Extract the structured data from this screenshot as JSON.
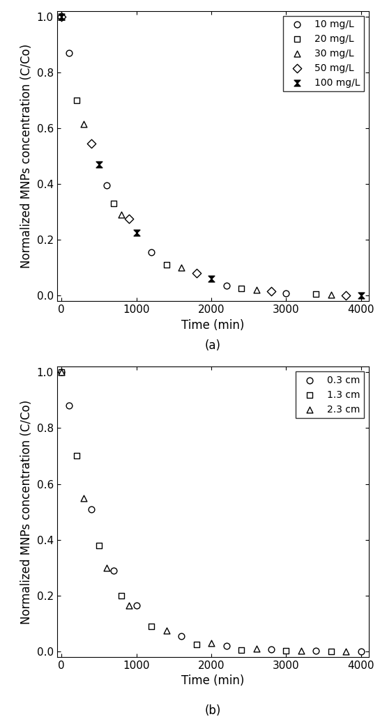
{
  "chart_data": [
    {
      "type": "scatter",
      "title": "(a)",
      "x_label": "Time (min)",
      "y_label": "Normalized MNPs concentration (C/Co)",
      "xlim": [
        -60,
        4100
      ],
      "ylim": [
        -0.02,
        1.02
      ],
      "xticks": [
        0,
        1000,
        2000,
        3000,
        4000
      ],
      "yticks": [
        {
          "value": 0.0,
          "label": "0.0"
        },
        {
          "value": 0.2,
          "label": "0.2"
        },
        {
          "value": 0.4,
          "label": "0.4"
        },
        {
          "value": 0.6,
          "label": "0.6"
        },
        {
          "value": 0.8,
          "label": "0.8"
        },
        {
          "value": 1.0,
          "label": "1.0"
        }
      ],
      "grid": false,
      "legend": "upper right",
      "series": [
        {
          "name": "10 mg/L",
          "color": "#000000",
          "marker": "circle",
          "x": [
            0,
            100,
            600,
            1200,
            2200,
            3000
          ],
          "values": [
            1.0,
            0.87,
            0.395,
            0.155,
            0.035,
            0.008
          ]
        },
        {
          "name": "20 mg/L",
          "color": "#000000",
          "marker": "square",
          "x": [
            0,
            200,
            700,
            1400,
            2400,
            3400
          ],
          "values": [
            1.0,
            0.7,
            0.33,
            0.11,
            0.025,
            0.005
          ]
        },
        {
          "name": "30 mg/L",
          "color": "#000000",
          "marker": "triangle",
          "x": [
            0,
            300,
            800,
            1600,
            2600,
            3600
          ],
          "values": [
            1.0,
            0.615,
            0.29,
            0.1,
            0.022,
            0.003
          ]
        },
        {
          "name": "50 mg/L",
          "color": "#000000",
          "marker": "diamond",
          "x": [
            0,
            400,
            900,
            1800,
            2800,
            3800
          ],
          "values": [
            1.0,
            0.545,
            0.275,
            0.08,
            0.015,
            0.002
          ]
        },
        {
          "name": "100 mg/L",
          "color": "#000000",
          "marker": "hourglass",
          "x": [
            0,
            500,
            1000,
            2000,
            4000
          ],
          "values": [
            1.0,
            0.47,
            0.225,
            0.06,
            0.0
          ]
        }
      ]
    },
    {
      "type": "scatter",
      "title": "(b)",
      "x_label": "Time (min)",
      "y_label": "Normalized MNPs concentration (C/Co)",
      "xlim": [
        -60,
        4100
      ],
      "ylim": [
        -0.02,
        1.02
      ],
      "xticks": [
        0,
        1000,
        2000,
        3000,
        4000
      ],
      "yticks": [
        {
          "value": 0.0,
          "label": "0.0"
        },
        {
          "value": 0.2,
          "label": "0.2"
        },
        {
          "value": 0.4,
          "label": "0.4"
        },
        {
          "value": 0.6,
          "label": "0.6"
        },
        {
          "value": 0.8,
          "label": "0.8"
        },
        {
          "value": 1.0,
          "label": "1.0"
        }
      ],
      "grid": false,
      "legend": "upper right",
      "series": [
        {
          "name": "0.3 cm",
          "color": "#000000",
          "marker": "circle",
          "x": [
            0,
            100,
            400,
            700,
            1000,
            1600,
            2200,
            2800,
            3400,
            4000
          ],
          "values": [
            1.0,
            0.88,
            0.51,
            0.29,
            0.165,
            0.055,
            0.02,
            0.008,
            0.003,
            0.0
          ]
        },
        {
          "name": "1.3 cm",
          "color": "#000000",
          "marker": "square",
          "x": [
            0,
            200,
            500,
            800,
            1200,
            1800,
            2400,
            3000,
            3600
          ],
          "values": [
            1.0,
            0.7,
            0.38,
            0.2,
            0.09,
            0.025,
            0.005,
            0.002,
            0.0
          ]
        },
        {
          "name": "2.3 cm",
          "color": "#000000",
          "marker": "triangle",
          "x": [
            0,
            300,
            600,
            900,
            1400,
            2000,
            2600,
            3200,
            3800
          ],
          "values": [
            1.0,
            0.55,
            0.3,
            0.165,
            0.075,
            0.03,
            0.01,
            0.003,
            0.0
          ]
        }
      ]
    }
  ]
}
